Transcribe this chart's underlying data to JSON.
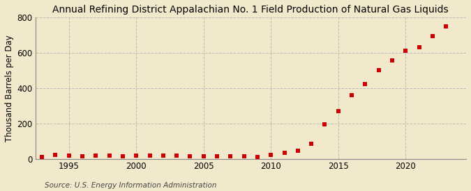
{
  "title": "Annual Refining District Appalachian No. 1 Field Production of Natural Gas Liquids",
  "ylabel": "Thousand Barrels per Day",
  "source": "Source: U.S. Energy Information Administration",
  "background_color": "#f2e8cc",
  "plot_background_color": "#f2e8cc",
  "marker_color": "#cc0000",
  "grid_color": "#bbbbbb",
  "years": [
    1993,
    1994,
    1995,
    1996,
    1997,
    1998,
    1999,
    2000,
    2001,
    2002,
    2003,
    2004,
    2005,
    2006,
    2007,
    2008,
    2009,
    2010,
    2011,
    2012,
    2013,
    2014,
    2015,
    2016,
    2017,
    2018,
    2019,
    2020,
    2021,
    2022,
    2023
  ],
  "values": [
    10,
    22,
    20,
    17,
    20,
    20,
    17,
    20,
    20,
    18,
    18,
    16,
    15,
    17,
    16,
    15,
    13,
    25,
    35,
    45,
    85,
    195,
    270,
    360,
    425,
    500,
    555,
    610,
    630,
    695,
    750
  ],
  "ylim": [
    0,
    800
  ],
  "yticks": [
    0,
    200,
    400,
    600,
    800
  ],
  "xlim": [
    1992.5,
    2024.5
  ],
  "xticks": [
    1995,
    2000,
    2005,
    2010,
    2015,
    2020
  ],
  "title_fontsize": 10,
  "label_fontsize": 8.5,
  "tick_fontsize": 8.5,
  "source_fontsize": 7.5
}
